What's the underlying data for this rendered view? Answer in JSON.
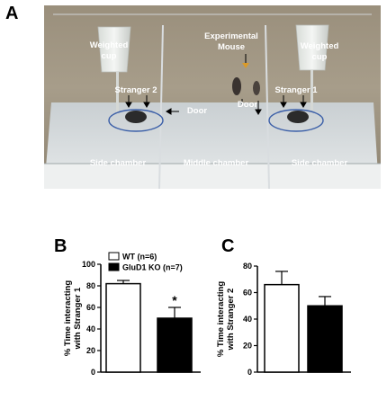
{
  "panels": {
    "a": "A",
    "b": "B",
    "c": "C"
  },
  "photo": {
    "labels": {
      "weighted_cup_left": [
        "Weighted",
        "cup"
      ],
      "weighted_cup_right": [
        "Weighted",
        "cup"
      ],
      "experimental_mouse": [
        "Experimental",
        "Mouse"
      ],
      "stranger2": "Stranger 2",
      "stranger1": "Stranger 1",
      "door_left": "Door",
      "door_right": "Door",
      "side_chamber_left": "Side chamber",
      "middle_chamber": "Middle chamber",
      "side_chamber_right": "Side chamber"
    }
  },
  "chart_data": [
    {
      "type": "bar",
      "panel": "B",
      "categories": [
        "WT (n=6)",
        "GluD1 KO (n=7)"
      ],
      "values": [
        82,
        50
      ],
      "errors": [
        3,
        10
      ],
      "colors": [
        "#ffffff",
        "#000000"
      ],
      "ylabel": [
        "% Time interacting",
        "with Stranger 1"
      ],
      "ylim": [
        0,
        100
      ],
      "yticks": [
        0,
        20,
        40,
        60,
        80,
        100
      ],
      "annotations": [
        {
          "category": "GluD1 KO (n=7)",
          "text": "*"
        }
      ],
      "legend": {
        "placement": "top",
        "entries": [
          {
            "label": "WT (n=6)",
            "color": "#ffffff"
          },
          {
            "label": "GluD1 KO (n=7)",
            "color": "#000000"
          }
        ]
      }
    },
    {
      "type": "bar",
      "panel": "C",
      "categories": [
        "WT",
        "GluD1 KO"
      ],
      "values": [
        66,
        50
      ],
      "errors": [
        10,
        7
      ],
      "colors": [
        "#ffffff",
        "#000000"
      ],
      "ylabel": [
        "% Time interacting",
        "with Stranger 2"
      ],
      "ylim": [
        0,
        80
      ],
      "yticks": [
        0,
        20,
        40,
        60,
        80
      ]
    }
  ]
}
